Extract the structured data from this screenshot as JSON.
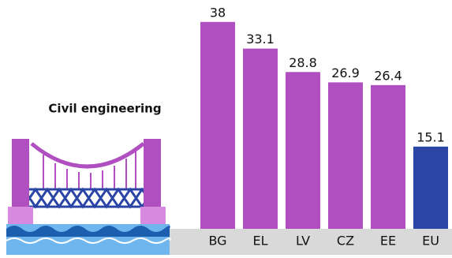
{
  "chart_data": {
    "type": "bar",
    "title": "Civil engineering",
    "categories": [
      "BG",
      "EL",
      "LV",
      "CZ",
      "EE",
      "EU"
    ],
    "values": [
      38,
      33.1,
      28.8,
      26.9,
      26.4,
      15.1
    ],
    "colors": [
      "#b050c0",
      "#b050c0",
      "#b050c0",
      "#b050c0",
      "#b050c0",
      "#2b45a6"
    ]
  }
}
